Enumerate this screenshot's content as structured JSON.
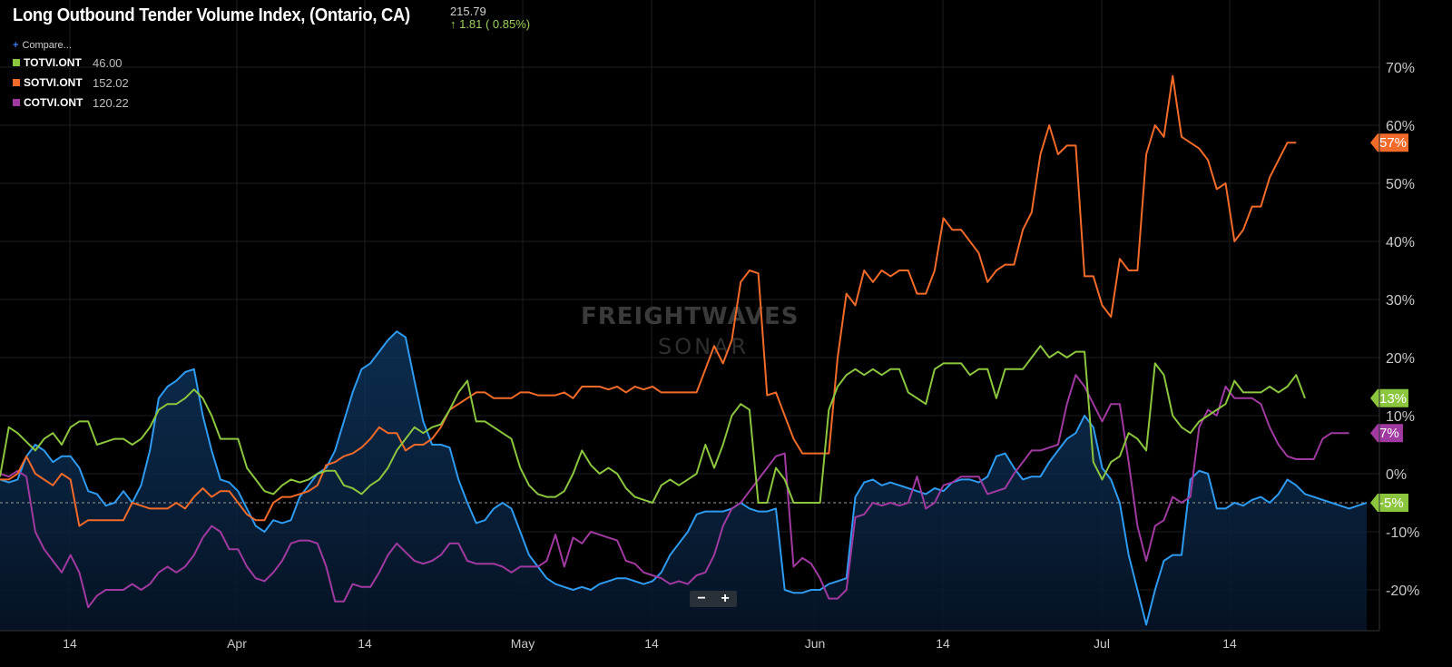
{
  "header": {
    "title": "Long Outbound Tender Volume Index, (Ontario, CA)",
    "price": "215.79",
    "change": "↑ 1.81 ( 0.85%)"
  },
  "legend": {
    "compare_label": "Compare...",
    "plus_icon": "+",
    "items": [
      {
        "name": "TOTVI.ONT",
        "value": "46.00",
        "color": "#8cc63f"
      },
      {
        "name": "SOTVI.ONT",
        "value": "152.02",
        "color": "#f26b2a"
      },
      {
        "name": "COTVI.ONT",
        "value": "120.22",
        "color": "#a03aa0"
      }
    ]
  },
  "watermark": {
    "line1": "FREIGHTWAVES",
    "line2": "SONAR"
  },
  "zoom": {
    "minus": "−",
    "plus": "+"
  },
  "chart_data": {
    "type": "line",
    "x_axis_labels": [
      "14",
      "Apr",
      "14",
      "May",
      "14",
      "Jun",
      "14",
      "Jul",
      "14"
    ],
    "y_ticks": [
      -20,
      -10,
      0,
      10,
      20,
      30,
      40,
      50,
      60,
      70
    ],
    "y_tick_labels": [
      "-20%",
      "-10%",
      "0%",
      "10%",
      "20%",
      "30%",
      "40%",
      "50%",
      "60%",
      "70%"
    ],
    "ylim": [
      -27,
      80
    ],
    "reference_line": -5,
    "end_tags": [
      {
        "label": "57%",
        "value": 57,
        "color": "#f26b2a"
      },
      {
        "label": "13%",
        "value": 13,
        "color": "#8cc63f"
      },
      {
        "label": "7%",
        "value": 7,
        "color": "#a03aa0"
      },
      {
        "label": "-5%",
        "value": -5,
        "color": "#8cc63f"
      }
    ],
    "series": [
      {
        "color": "#2f9bf0",
        "area": true,
        "values": [
          -1,
          -1.5,
          -1,
          3,
          5,
          4,
          2,
          3,
          3,
          1,
          -3,
          -3.5,
          -5.5,
          -5,
          -3,
          -5,
          -2,
          4,
          13,
          15,
          16,
          17.5,
          18,
          10,
          4,
          -1,
          -1.5,
          -3,
          -6,
          -9,
          -10,
          -8,
          -8.5,
          -8,
          -4,
          -2,
          0,
          1,
          4,
          9,
          14,
          18,
          19,
          21,
          23,
          24.5,
          23.5,
          16,
          9,
          5,
          5,
          4.5,
          -1,
          -5,
          -8.5,
          -8,
          -6,
          -5,
          -6,
          -10,
          -14,
          -16,
          -18,
          -19,
          -19.5,
          -20,
          -19.5,
          -20,
          -19,
          -18.5,
          -18,
          -18,
          -18.5,
          -19,
          -18.5,
          -17,
          -14,
          -12,
          -10,
          -7,
          -6.5,
          -6.5,
          -6.5,
          -6,
          -5,
          -6,
          -6.5,
          -6.5,
          -6,
          -20,
          -20.5,
          -20.5,
          -20,
          -20,
          -19,
          -18.5,
          -18,
          -4,
          -1.5,
          -1,
          -2,
          -1.5,
          -2,
          -2.5,
          -3,
          -3.5,
          -2.5,
          -3,
          -1.5,
          -1,
          -1,
          -1.5,
          -0.5,
          3,
          3.5,
          1,
          -1,
          -0.5,
          -0.5,
          2,
          4,
          6,
          7,
          10,
          8,
          1,
          -1,
          -5,
          -14,
          -20,
          -26,
          -20,
          -15,
          -14,
          -14,
          -1,
          0.5,
          0,
          -6,
          -6,
          -5,
          -5.5,
          -4.5,
          -4,
          -5,
          -3.5,
          -1,
          -2,
          -3.5,
          -4,
          -4.5,
          -5,
          -5.5,
          -6,
          -5.5,
          -5
        ]
      },
      {
        "color": "#a03aa0",
        "values": [
          0,
          -0.5,
          0.5,
          -0.5,
          -10,
          -13,
          -15,
          -17,
          -14,
          -17,
          -23,
          -21,
          -20,
          -20,
          -20,
          -19,
          -20,
          -19,
          -17,
          -16,
          -17,
          -16,
          -14,
          -11,
          -9,
          -10,
          -13,
          -13,
          -16,
          -18,
          -18.5,
          -17,
          -15,
          -12,
          -11.5,
          -11.5,
          -12,
          -16,
          -22,
          -22,
          -19,
          -19.5,
          -19.5,
          -17,
          -14,
          -12,
          -13.5,
          -15,
          -15.5,
          -15,
          -14,
          -12,
          -12,
          -15,
          -15.5,
          -15.5,
          -15.5,
          -16,
          -17,
          -16,
          -16,
          -16,
          -15,
          -10.5,
          -16,
          -11,
          -12,
          -10,
          -10.5,
          -11,
          -11.5,
          -15,
          -15.5,
          -17,
          -17.5,
          -18,
          -19,
          -18.5,
          -19,
          -17.5,
          -17,
          -14,
          -9,
          -6,
          -5,
          -3,
          -1,
          1,
          3,
          3.5,
          -16,
          -14.5,
          -15.5,
          -18,
          -21.5,
          -21.5,
          -20,
          -7.5,
          -7,
          -5,
          -5.5,
          -5,
          -5.5,
          -5,
          -0.5,
          -6,
          -5,
          -2,
          -1.5,
          -0.5,
          -0.5,
          -0.5,
          -3.5,
          -3,
          -2.5,
          0,
          2,
          4,
          4,
          4.5,
          5,
          12,
          17,
          15,
          12,
          9,
          12,
          12,
          2,
          -9,
          -15,
          -9,
          -8,
          -4,
          -5,
          -4,
          8,
          11,
          10,
          15,
          13,
          13,
          13,
          12,
          8,
          5,
          3,
          2.5,
          2.5,
          2.5,
          6,
          7,
          7,
          7
        ]
      },
      {
        "color": "#f26b2a",
        "values": [
          -1,
          -1,
          0,
          3,
          0,
          -1,
          -2,
          0,
          -1,
          -9,
          -8,
          -8,
          -8,
          -8,
          -8,
          -5,
          -5.5,
          -6,
          -6,
          -6,
          -5,
          -6,
          -4,
          -2.5,
          -4,
          -3,
          -3,
          -5,
          -7,
          -8,
          -8,
          -5,
          -4,
          -4,
          -3.5,
          -3,
          -2,
          1.5,
          2,
          3,
          3.5,
          4.5,
          6,
          8,
          7,
          7,
          4,
          5,
          5,
          6,
          8,
          11,
          12,
          13,
          14,
          14,
          13,
          13,
          13,
          14,
          14,
          13.5,
          13.5,
          13.5,
          14,
          13,
          15,
          15,
          15,
          14.5,
          15,
          14,
          15,
          14.5,
          15,
          14,
          14,
          14,
          14,
          14,
          18,
          22,
          19,
          23,
          33,
          35,
          34.5,
          13.5,
          14,
          10,
          6,
          3.5,
          3.5,
          3.5,
          3.5,
          20,
          31,
          29,
          35,
          33,
          35,
          34,
          35,
          35,
          31,
          31,
          35,
          44,
          42,
          42,
          40,
          38,
          33,
          35,
          36,
          36,
          42,
          45,
          55,
          60,
          55,
          56.5,
          56.5,
          34,
          34,
          29,
          27,
          37,
          35,
          35,
          55,
          60,
          58,
          68.5,
          58,
          57,
          56,
          54,
          49,
          50,
          40,
          42,
          46,
          46,
          51,
          54,
          57,
          57
        ]
      },
      {
        "color": "#8cc63f",
        "values": [
          -0.5,
          8,
          7,
          5.5,
          4,
          6,
          7,
          5,
          8,
          9,
          9,
          5,
          5.5,
          6,
          6,
          5,
          6,
          8,
          11,
          12,
          12,
          13,
          14.5,
          13,
          10,
          6,
          6,
          6,
          1,
          -1,
          -3,
          -3.5,
          -2,
          -1,
          -1.5,
          -1,
          0,
          0.5,
          0.5,
          -2,
          -2.5,
          -3.5,
          -2,
          -1,
          1,
          4,
          6,
          8,
          7,
          8,
          8.5,
          11,
          14,
          16,
          9,
          9,
          8,
          7,
          6,
          1,
          -2,
          -3.5,
          -4,
          -4,
          -3,
          0,
          4,
          1.5,
          0,
          1,
          0,
          -2.5,
          -4,
          -4.5,
          -5,
          -2,
          -1,
          -2,
          -1,
          0,
          5,
          1,
          5,
          10,
          12,
          11,
          -5,
          -5,
          1,
          -1,
          -5,
          -5,
          -5,
          -5,
          11,
          15,
          17,
          18,
          17,
          18,
          17,
          18,
          18,
          14,
          13,
          12,
          18,
          19,
          19,
          19,
          17,
          18,
          18,
          13,
          18,
          18,
          18,
          20,
          22,
          20,
          21,
          20,
          21,
          21,
          2,
          -1,
          2,
          3,
          7,
          6,
          4,
          19,
          17,
          10,
          8,
          7,
          9,
          10,
          11,
          12,
          16,
          14,
          14,
          14,
          15,
          14,
          15,
          17,
          13
        ]
      }
    ]
  }
}
